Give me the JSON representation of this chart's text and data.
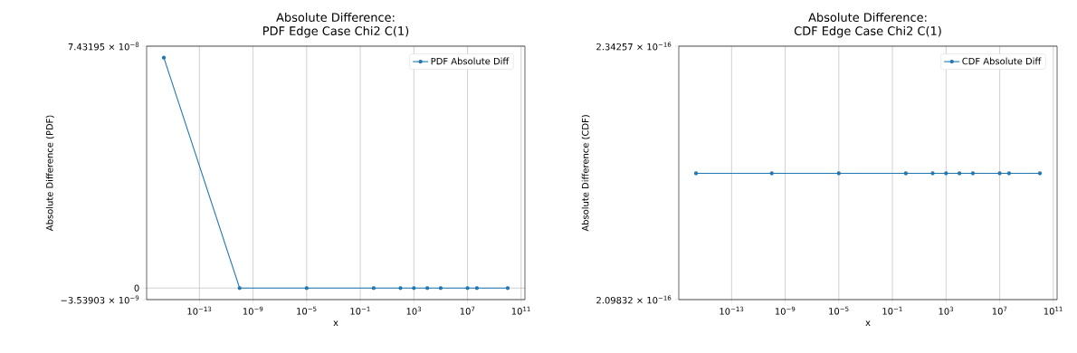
{
  "chart_data": [
    {
      "type": "line",
      "title": "Absolute Difference:",
      "subtitle": "PDF Edge Case Chi2 C(1)",
      "xlabel": "x",
      "ylabel": "Absolute Difference (PDF)",
      "log": "x",
      "grid": true,
      "legend": "top right",
      "marker": "circle",
      "x": [
        2.220446e-16,
        1e-10,
        1e-05,
        1,
        100,
        1000,
        10000,
        100000,
        10000000,
        50000000,
        10000000000
      ],
      "series": [
        {
          "name": "PDF Absolute Diff",
          "color": "#1f77b4",
          "values": [
            7.08e-08,
            0,
            0,
            0,
            0,
            0,
            0,
            0,
            0,
            0,
            0
          ]
        }
      ],
      "xlim": [
        1.156e-17,
        192000000000.0
      ],
      "ylim": [
        -3.53903e-09,
        7.43195e-08
      ],
      "xticks": [
        {
          "value": 1e-13,
          "label": "10$^{−13}$"
        },
        {
          "value": 1e-09,
          "label": "10$^{−9}$"
        },
        {
          "value": 1e-05,
          "label": "10$^{−5}$"
        },
        {
          "value": 0.1,
          "label": "10$^{−1}$"
        },
        {
          "value": 1000,
          "label": "10$^{3}$"
        },
        {
          "value": 10000000,
          "label": "10$^{7}$"
        },
        {
          "value": 100000000000,
          "label": "10$^{11}$"
        }
      ],
      "yticks": [
        {
          "value": -3.53903e-09,
          "label": "−3.53903 × 10$^{−9}$"
        },
        0,
        {
          "value": 7.43195e-08,
          "label": "7.43195 × 10$^{−8}$"
        }
      ]
    },
    {
      "type": "line",
      "title": "Absolute Difference:",
      "subtitle": "CDF Edge Case Chi2 C(1)",
      "xlabel": "x",
      "ylabel": "Absolute Difference (CDF)",
      "log": "x",
      "grid": true,
      "legend": "top right",
      "marker": "circle",
      "x": [
        2.220446e-16,
        1e-10,
        1e-05,
        1,
        100,
        1000,
        10000,
        100000,
        10000000,
        50000000,
        10000000000
      ],
      "series": [
        {
          "name": "CDF Absolute Diff",
          "color": "#1f77b4",
          "values": [
            2.22e-16,
            2.22e-16,
            2.22e-16,
            2.22e-16,
            2.22e-16,
            2.22e-16,
            2.22e-16,
            2.22e-16,
            2.22e-16,
            2.22e-16,
            2.22e-16
          ]
        }
      ],
      "xlim": [
        1.156e-17,
        192000000000.0
      ],
      "ylim": [
        2.09832e-16,
        2.34257e-16
      ],
      "xticks": [
        {
          "value": 1e-13,
          "label": "10$^{−13}$"
        },
        {
          "value": 1e-09,
          "label": "10$^{−9}$"
        },
        {
          "value": 1e-05,
          "label": "10$^{−5}$"
        },
        {
          "value": 0.1,
          "label": "10$^{−1}$"
        },
        {
          "value": 1000,
          "label": "10$^{3}$"
        },
        {
          "value": 10000000,
          "label": "10$^{7}$"
        },
        {
          "value": 100000000000,
          "label": "10$^{11}$"
        }
      ],
      "yticks": [
        {
          "value": 2.09832e-16,
          "label": "2.09832 × 10$^{−16}$"
        },
        {
          "value": 2.34257e-16,
          "label": "2.34257 × 10$^{−16}$"
        }
      ]
    }
  ]
}
